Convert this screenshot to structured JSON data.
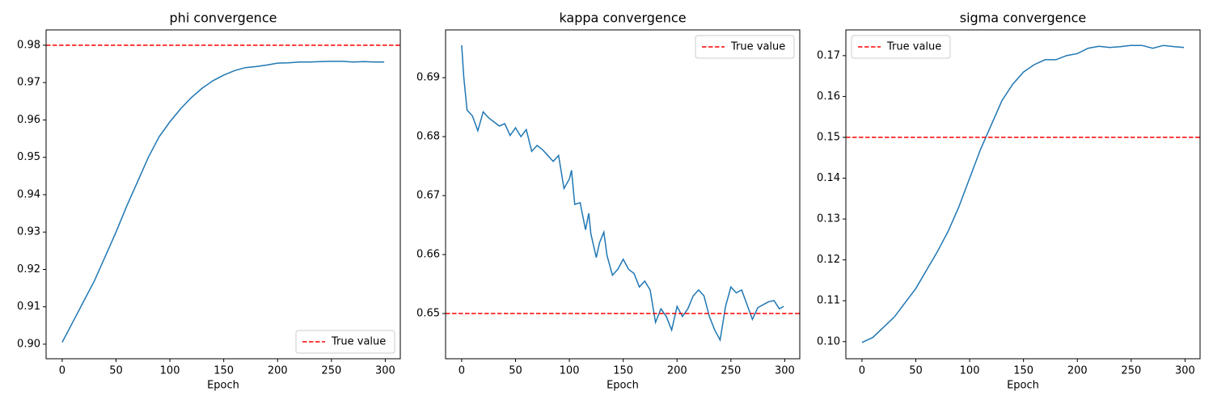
{
  "chart_data": [
    {
      "type": "line",
      "title": "phi convergence",
      "xlabel": "Epoch",
      "x": [
        0,
        10,
        20,
        30,
        40,
        50,
        60,
        70,
        80,
        90,
        100,
        110,
        120,
        130,
        140,
        150,
        160,
        170,
        180,
        190,
        200,
        210,
        220,
        230,
        240,
        250,
        260,
        270,
        280,
        290,
        299
      ],
      "series": [
        {
          "name": null,
          "color": "#1f77b4",
          "values": [
            0.9005,
            0.906,
            0.9115,
            0.917,
            0.9235,
            0.93,
            0.937,
            0.9435,
            0.95,
            0.9555,
            0.9595,
            0.963,
            0.966,
            0.9685,
            0.9705,
            0.972,
            0.9732,
            0.974,
            0.9743,
            0.9747,
            0.9752,
            0.9753,
            0.9755,
            0.9755,
            0.9756,
            0.9757,
            0.9757,
            0.9755,
            0.9756,
            0.9755,
            0.9755
          ]
        }
      ],
      "hline": {
        "name": "True value",
        "value": 0.98,
        "color": "#ff0000"
      },
      "legend": "lower right",
      "xlim": [
        -14.95,
        313.95
      ],
      "xticks": [
        0,
        50,
        100,
        150,
        200,
        250,
        300
      ],
      "ylim": [
        0.8961,
        0.9841
      ],
      "yticks": [
        {
          "value": 0.9,
          "label": "0.90"
        },
        0.91,
        0.92,
        0.93,
        0.94,
        0.95,
        0.96,
        0.97,
        0.98
      ]
    },
    {
      "type": "line",
      "title": "kappa convergence",
      "xlabel": "Epoch",
      "x": [
        0,
        2,
        5,
        10,
        15,
        20,
        25,
        30,
        35,
        40,
        45,
        50,
        55,
        60,
        65,
        70,
        75,
        80,
        85,
        90,
        95,
        100,
        102,
        105,
        110,
        115,
        118,
        120,
        125,
        128,
        132,
        135,
        140,
        145,
        150,
        155,
        160,
        165,
        170,
        175,
        180,
        185,
        190,
        195,
        200,
        205,
        210,
        215,
        220,
        225,
        230,
        235,
        240,
        245,
        250,
        255,
        260,
        265,
        270,
        275,
        280,
        285,
        290,
        295,
        299
      ],
      "series": [
        {
          "name": null,
          "color": "#1f77b4",
          "values": [
            0.6955,
            0.69,
            0.6845,
            0.6835,
            0.681,
            0.6842,
            0.6832,
            0.6825,
            0.6818,
            0.6822,
            0.6802,
            0.6815,
            0.68,
            0.6812,
            0.6775,
            0.6785,
            0.6778,
            0.6768,
            0.6758,
            0.6768,
            0.6712,
            0.6728,
            0.6743,
            0.6685,
            0.6688,
            0.6642,
            0.667,
            0.6635,
            0.6595,
            0.662,
            0.6638,
            0.6598,
            0.6565,
            0.6575,
            0.6592,
            0.6575,
            0.6568,
            0.6545,
            0.6555,
            0.654,
            0.6485,
            0.6508,
            0.6495,
            0.6472,
            0.6512,
            0.6495,
            0.6508,
            0.653,
            0.654,
            0.653,
            0.6495,
            0.6472,
            0.6455,
            0.6512,
            0.6545,
            0.6535,
            0.654,
            0.6515,
            0.649,
            0.651,
            0.6515,
            0.652,
            0.6522,
            0.6508,
            0.6512
          ]
        }
      ],
      "hline": {
        "name": "True value",
        "value": 0.65,
        "color": "#ff0000"
      },
      "legend": "upper right",
      "xlim": [
        -14.95,
        313.95
      ],
      "xticks": [
        0,
        50,
        100,
        150,
        200,
        250,
        300
      ],
      "ylim": [
        0.64233,
        0.6981
      ],
      "yticks": [
        0.65,
        0.66,
        0.67,
        0.68,
        0.69
      ]
    },
    {
      "type": "line",
      "title": "sigma convergence",
      "xlabel": "Epoch",
      "x": [
        0,
        10,
        20,
        30,
        40,
        50,
        60,
        70,
        80,
        90,
        100,
        110,
        120,
        130,
        140,
        150,
        160,
        170,
        180,
        190,
        200,
        210,
        220,
        230,
        240,
        250,
        260,
        270,
        280,
        290,
        299
      ],
      "series": [
        {
          "name": null,
          "color": "#1f77b4",
          "values": [
            0.0998,
            0.101,
            0.1035,
            0.106,
            0.1095,
            0.113,
            0.1175,
            0.122,
            0.127,
            0.133,
            0.14,
            0.147,
            0.153,
            0.159,
            0.163,
            0.166,
            0.1678,
            0.169,
            0.169,
            0.17,
            0.1705,
            0.1718,
            0.1723,
            0.172,
            0.1722,
            0.1725,
            0.1725,
            0.1718,
            0.1725,
            0.1722,
            0.172
          ]
        }
      ],
      "hline": {
        "name": "True value",
        "value": 0.15,
        "color": "#ff0000"
      },
      "legend": "upper left",
      "xlim": [
        -14.95,
        313.95
      ],
      "xticks": [
        0,
        50,
        100,
        150,
        200,
        250,
        300
      ],
      "ylim": [
        0.0958,
        0.1763
      ],
      "yticks": [
        {
          "value": 0.1,
          "label": "0.10"
        },
        0.11,
        0.12,
        0.13,
        0.14,
        0.15,
        0.16,
        0.17
      ]
    }
  ]
}
